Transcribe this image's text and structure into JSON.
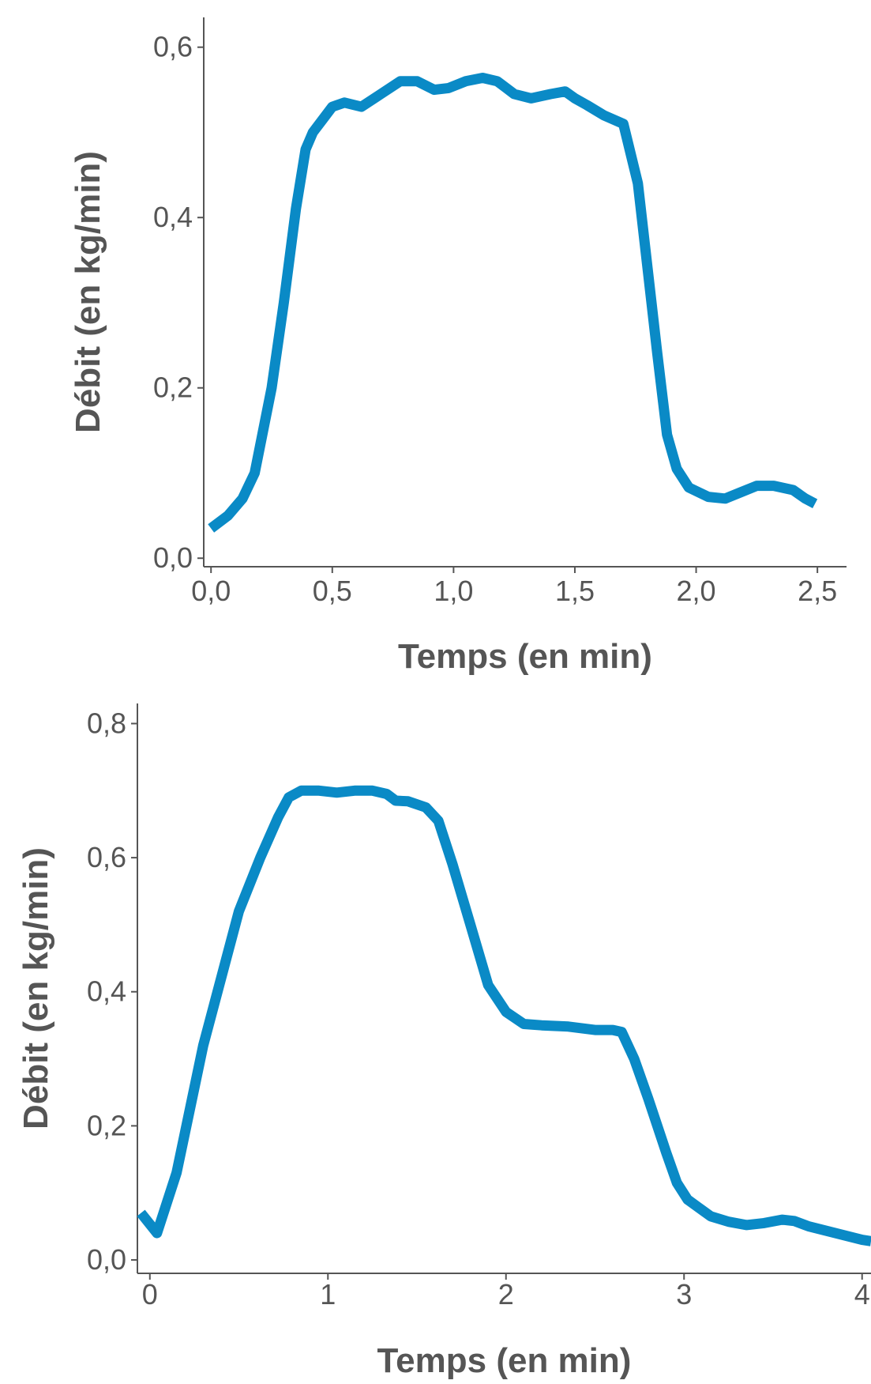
{
  "colors": {
    "line": "#0a8ac6",
    "axis": "#555555",
    "text": "#555555",
    "background": "#ffffff"
  },
  "chart_data": [
    {
      "type": "line",
      "title": "",
      "xlabel": "Temps (en min)",
      "ylabel": "Débit (en kg/min)",
      "xlim": [
        -0.03,
        2.62
      ],
      "ylim": [
        -0.01,
        0.635
      ],
      "xticks": [
        0,
        0.5,
        1,
        1.5,
        2,
        2.5
      ],
      "xtick_labels": [
        "0,0",
        "0,5",
        "1,0",
        "1,5",
        "2,0",
        "2,5"
      ],
      "yticks": [
        0,
        0.2,
        0.4,
        0.6
      ],
      "ytick_labels": [
        "0,0",
        "0,2",
        "0,4",
        "0,6"
      ],
      "grid": false,
      "series": [
        {
          "x": [
            0.0,
            0.07,
            0.13,
            0.18,
            0.25,
            0.3,
            0.35,
            0.39,
            0.42,
            0.46,
            0.5,
            0.55,
            0.62,
            0.7,
            0.78,
            0.85,
            0.92,
            0.98,
            1.05,
            1.12,
            1.18,
            1.25,
            1.32,
            1.4,
            1.46,
            1.5,
            1.55,
            1.62,
            1.7,
            1.76,
            1.8,
            1.84,
            1.88,
            1.92,
            1.97,
            2.05,
            2.12,
            2.18,
            2.25,
            2.32,
            2.4,
            2.45,
            2.49
          ],
          "y": [
            0.035,
            0.05,
            0.07,
            0.1,
            0.2,
            0.3,
            0.41,
            0.48,
            0.5,
            0.515,
            0.53,
            0.535,
            0.53,
            0.545,
            0.56,
            0.56,
            0.55,
            0.552,
            0.56,
            0.564,
            0.56,
            0.545,
            0.54,
            0.545,
            0.548,
            0.54,
            0.532,
            0.52,
            0.51,
            0.44,
            0.34,
            0.24,
            0.145,
            0.105,
            0.083,
            0.072,
            0.07,
            0.077,
            0.085,
            0.085,
            0.08,
            0.07,
            0.064
          ]
        }
      ]
    },
    {
      "type": "line",
      "title": "",
      "xlabel": "Temps (en min)",
      "ylabel": "Débit (en kg/min)",
      "xlim": [
        -0.07,
        4.05
      ],
      "ylim": [
        -0.02,
        0.83
      ],
      "xticks": [
        0,
        1,
        2,
        3,
        4
      ],
      "xtick_labels": [
        "0",
        "1",
        "2",
        "3",
        "4"
      ],
      "yticks": [
        0,
        0.2,
        0.4,
        0.6,
        0.8
      ],
      "ytick_labels": [
        "0,0",
        "0,2",
        "0,4",
        "0,6",
        "0,8"
      ],
      "grid": false,
      "series": [
        {
          "x": [
            -0.05,
            0.04,
            0.15,
            0.3,
            0.5,
            0.62,
            0.72,
            0.78,
            0.85,
            0.95,
            1.05,
            1.15,
            1.25,
            1.33,
            1.38,
            1.45,
            1.55,
            1.62,
            1.7,
            1.8,
            1.9,
            2.0,
            2.1,
            2.2,
            2.35,
            2.5,
            2.6,
            2.65,
            2.72,
            2.8,
            2.9,
            2.96,
            3.02,
            3.15,
            3.25,
            3.35,
            3.45,
            3.55,
            3.62,
            3.7,
            3.85,
            4.0,
            4.05
          ],
          "y": [
            0.07,
            0.04,
            0.13,
            0.32,
            0.52,
            0.6,
            0.66,
            0.69,
            0.7,
            0.7,
            0.697,
            0.7,
            0.7,
            0.695,
            0.685,
            0.684,
            0.675,
            0.655,
            0.59,
            0.5,
            0.41,
            0.37,
            0.352,
            0.35,
            0.348,
            0.343,
            0.343,
            0.34,
            0.3,
            0.24,
            0.16,
            0.115,
            0.09,
            0.065,
            0.057,
            0.052,
            0.055,
            0.06,
            0.058,
            0.05,
            0.04,
            0.03,
            0.028
          ]
        }
      ]
    }
  ]
}
